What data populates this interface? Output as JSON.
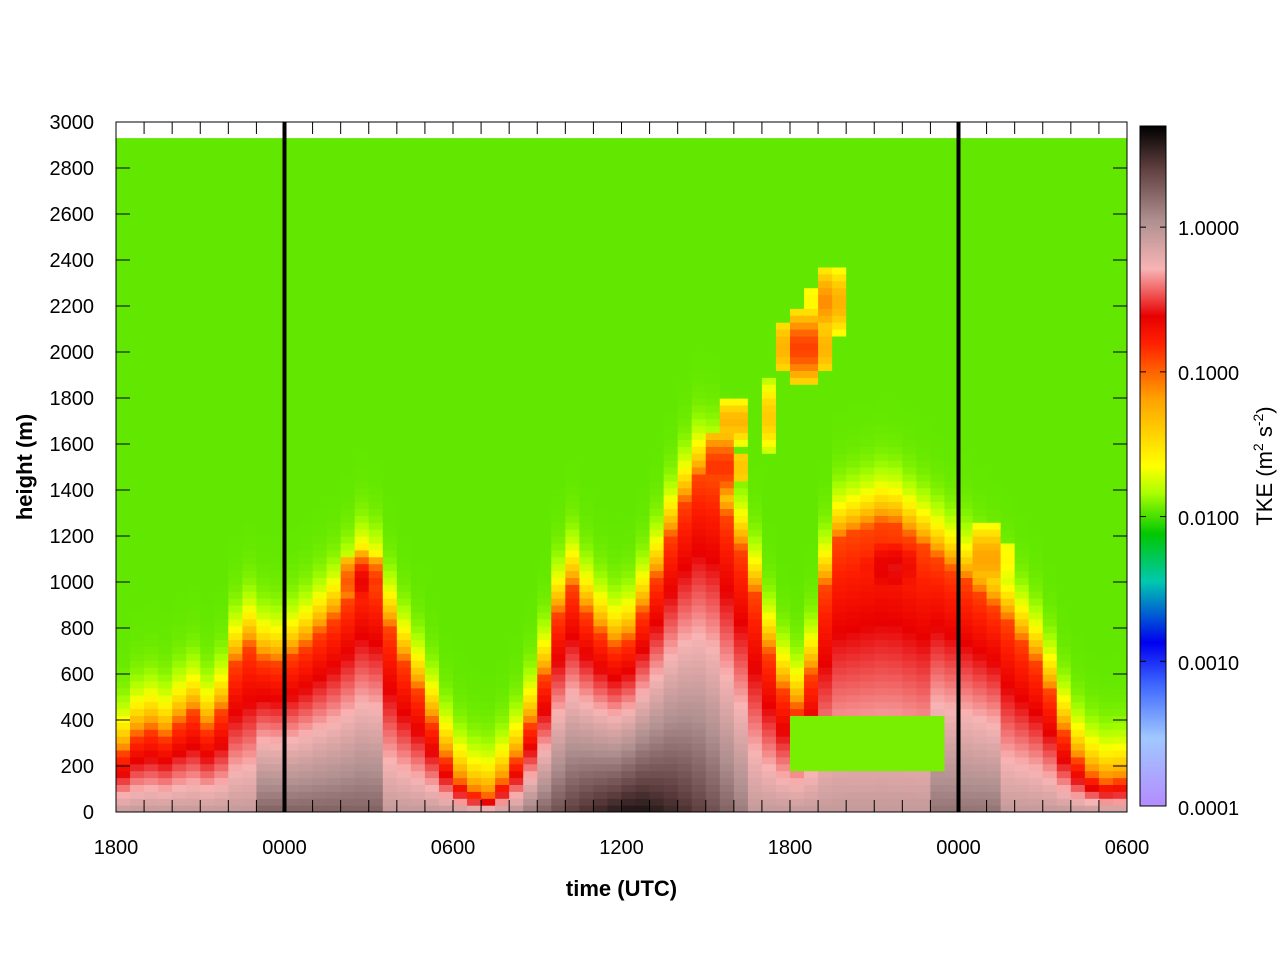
{
  "chart_data": {
    "type": "heatmap",
    "title": "",
    "xlabel": "time (UTC)",
    "ylabel": "height (m)",
    "x_tick_labels": [
      "1800",
      "0000",
      "0600",
      "1200",
      "1800",
      "0000",
      "0600"
    ],
    "x_range_hours": [
      0,
      36
    ],
    "y_ticks": [
      0,
      200,
      400,
      600,
      800,
      1000,
      1200,
      1400,
      1600,
      1800,
      2000,
      2200,
      2400,
      2600,
      2800,
      3000
    ],
    "ylim": [
      0,
      3000
    ],
    "data_top_height": 2930,
    "midnight_markers_hours": [
      6,
      30
    ],
    "colorbar": {
      "label": "TKE (m",
      "label_sup1": "2",
      "label_mid": " s",
      "label_sup2": "-2",
      "label_end": ")",
      "scale": "log",
      "range": [
        0.0001,
        5
      ],
      "tick_values": [
        0.0001,
        0.001,
        0.01,
        0.1,
        1.0
      ],
      "tick_labels": [
        "0.0001",
        "0.0010",
        "0.0100",
        "0.1000",
        "1.0000"
      ]
    },
    "boundary_layer_top_m": [
      {
        "t": 0,
        "h": 220
      },
      {
        "t": 1,
        "h": 380
      },
      {
        "t": 2,
        "h": 320
      },
      {
        "t": 2.5,
        "h": 470
      },
      {
        "t": 3.5,
        "h": 340
      },
      {
        "t": 4.5,
        "h": 760
      },
      {
        "t": 5.5,
        "h": 640
      },
      {
        "t": 6.5,
        "h": 700
      },
      {
        "t": 8,
        "h": 880
      },
      {
        "t": 9,
        "h": 1080
      },
      {
        "t": 10,
        "h": 720
      },
      {
        "t": 11,
        "h": 480
      },
      {
        "t": 12,
        "h": 160
      },
      {
        "t": 13,
        "h": 60
      },
      {
        "t": 13.5,
        "h": 80
      },
      {
        "t": 14.5,
        "h": 280
      },
      {
        "t": 15.5,
        "h": 700
      },
      {
        "t": 16,
        "h": 1040
      },
      {
        "t": 17,
        "h": 820
      },
      {
        "t": 18,
        "h": 700
      },
      {
        "t": 19,
        "h": 940
      },
      {
        "t": 20,
        "h": 1300
      },
      {
        "t": 21,
        "h": 1520
      },
      {
        "t": 22.5,
        "h": 1080
      },
      {
        "t": 23.5,
        "h": 580
      },
      {
        "t": 24.5,
        "h": 420
      },
      {
        "t": 25.5,
        "h": 1180
      },
      {
        "t": 27.5,
        "h": 1280
      },
      {
        "t": 29,
        "h": 1140
      },
      {
        "t": 30,
        "h": 1040
      },
      {
        "t": 31.5,
        "h": 880
      },
      {
        "t": 33,
        "h": 620
      },
      {
        "t": 34,
        "h": 260
      },
      {
        "t": 35,
        "h": 130
      },
      {
        "t": 36,
        "h": 140
      }
    ]
  }
}
